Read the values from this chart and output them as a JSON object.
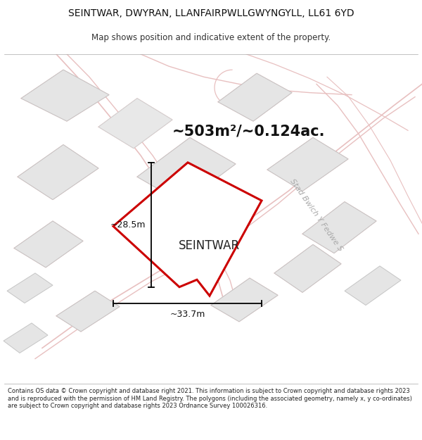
{
  "title_line1": "SEINTWAR, DWYRAN, LLANFAIRPWLLGWYNGYLL, LL61 6YD",
  "title_line2": "Map shows position and indicative extent of the property.",
  "area_label": "~503m²/~0.124ac.",
  "property_name": "SEINTWAR",
  "dim_width": "~33.7m",
  "dim_height": "~28.5m",
  "street_label": "Stad Bwlch Y Fedwe S",
  "footer_text": "Contains OS data © Crown copyright and database right 2021. This information is subject to Crown copyright and database rights 2023 and is reproduced with the permission of HM Land Registry. The polygons (including the associated geometry, namely x, y co-ordinates) are subject to Crown copyright and database rights 2023 Ordnance Survey 100026316.",
  "map_bg": "#f7f7f7",
  "plot_color": "#cc0000",
  "bldg_fill": "#e8e8e8",
  "bldg_edge": "#c8c8c8",
  "road_outline_color": "#f0c8c8",
  "title_fs": 10,
  "subtitle_fs": 8.5,
  "area_fs": 15,
  "prop_fs": 12,
  "dim_fs": 9,
  "street_fs": 8,
  "footer_fs": 6.0
}
